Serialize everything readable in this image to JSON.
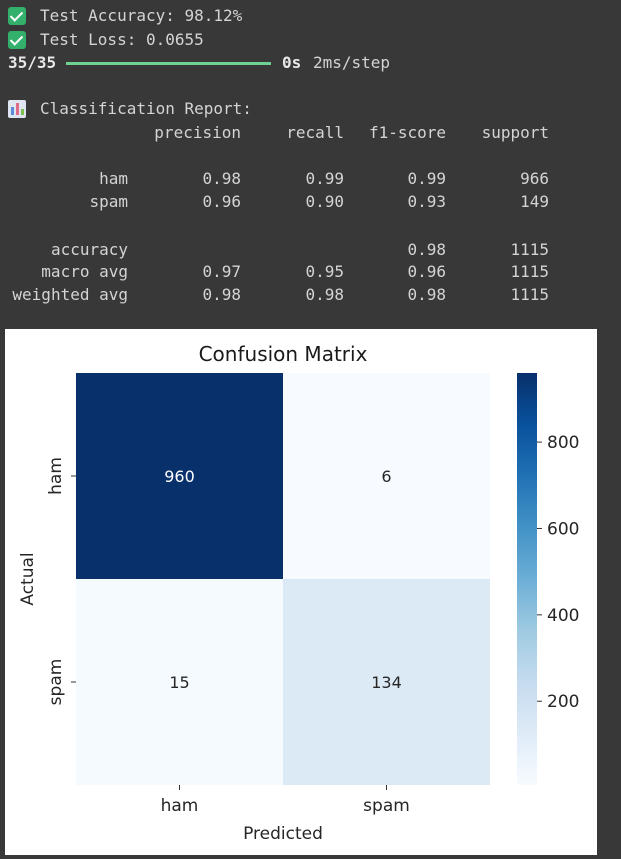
{
  "output": {
    "accuracy_line": "Test Accuracy: 98.12%",
    "loss_line": "Test Loss: 0.0655",
    "progress": {
      "counter": "35/35",
      "fraction": 1.0,
      "time": "0s",
      "step": "2ms/step"
    },
    "report_title": "Classification Report:",
    "report": {
      "headers": [
        "precision",
        "recall",
        "f1-score",
        "support"
      ],
      "rows": [
        {
          "label": "ham",
          "precision": "0.98",
          "recall": "0.99",
          "f1": "0.99",
          "support": "966"
        },
        {
          "label": "spam",
          "precision": "0.96",
          "recall": "0.90",
          "f1": "0.93",
          "support": "149"
        },
        {
          "label": "accuracy",
          "precision": "",
          "recall": "",
          "f1": "0.98",
          "support": "1115"
        },
        {
          "label": "macro avg",
          "precision": "0.97",
          "recall": "0.95",
          "f1": "0.96",
          "support": "1115"
        },
        {
          "label": "weighted avg",
          "precision": "0.98",
          "recall": "0.98",
          "f1": "0.98",
          "support": "1115"
        }
      ]
    },
    "colors": {
      "check": "#33b06b",
      "progress": "#6fd094"
    }
  },
  "chart_data": {
    "type": "heatmap",
    "title": "Confusion Matrix",
    "xlabel": "Predicted",
    "ylabel": "Actual",
    "x_categories": [
      "ham",
      "spam"
    ],
    "y_categories": [
      "ham",
      "spam"
    ],
    "values": [
      [
        960,
        6
      ],
      [
        15,
        134
      ]
    ],
    "colormap": "Blues",
    "colorbar": {
      "range": [
        6,
        960
      ],
      "ticks": [
        200,
        400,
        600,
        800
      ]
    }
  }
}
